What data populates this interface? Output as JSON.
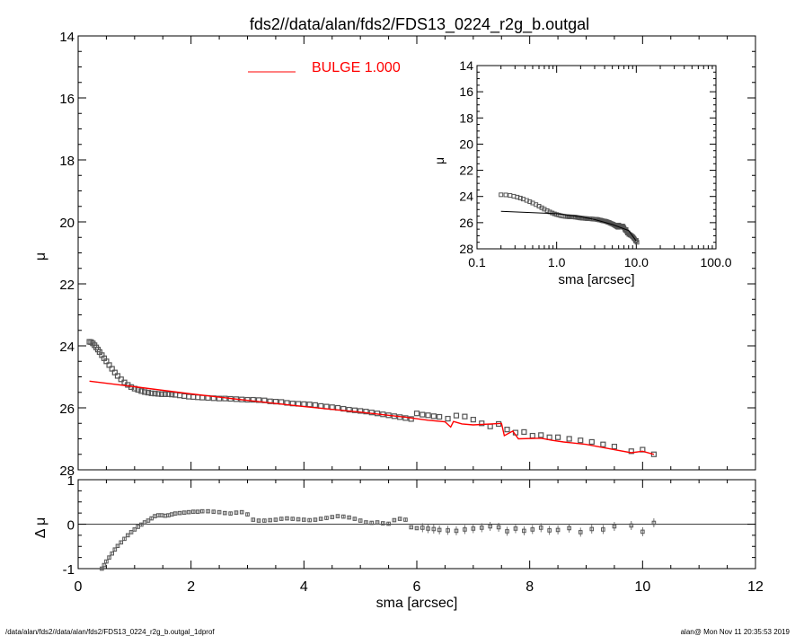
{
  "footer": {
    "left": "/data/alan/fds2//data/alan/fds2/FDS13_0224_r2g_b.outgal_1dprof",
    "right": "alan@  Mon Nov 11 20:35:53 2019"
  },
  "colors": {
    "model": "#ff0000",
    "points": "#555555",
    "axes": "#000000"
  },
  "chart_data": [
    {
      "id": "main",
      "type": "scatter",
      "title": "fds2//data/alan/fds2/FDS13_0224_r2g_b.outgal",
      "xlabel": "",
      "ylabel": "μ",
      "xlim": [
        0,
        12
      ],
      "ylim": [
        28,
        14
      ],
      "yticks": [
        "14",
        "16",
        "18",
        "20",
        "22",
        "24",
        "26",
        "28"
      ],
      "legend": {
        "label": "BULGE  1.000",
        "placement": "top-center",
        "color": "#ff0000"
      },
      "series": [
        {
          "kind": "points",
          "x": [
            0.2,
            0.23,
            0.26,
            0.29,
            0.32,
            0.35,
            0.38,
            0.42,
            0.46,
            0.5,
            0.55,
            0.6,
            0.65,
            0.7,
            0.76,
            0.82,
            0.88,
            0.94,
            1.0,
            1.06,
            1.12,
            1.18,
            1.24,
            1.3,
            1.36,
            1.42,
            1.48,
            1.54,
            1.6,
            1.66,
            1.72,
            1.8,
            1.88,
            1.96,
            2.04,
            2.12,
            2.2,
            2.3,
            2.4,
            2.5,
            2.6,
            2.7,
            2.8,
            2.9,
            3.0,
            3.1,
            3.2,
            3.3,
            3.4,
            3.5,
            3.6,
            3.7,
            3.8,
            3.9,
            4.0,
            4.1,
            4.2,
            4.3,
            4.4,
            4.5,
            4.6,
            4.7,
            4.8,
            4.9,
            5.0,
            5.1,
            5.2,
            5.3,
            5.4,
            5.5,
            5.6,
            5.7,
            5.8,
            5.9,
            6.0,
            6.1,
            6.2,
            6.3,
            6.4,
            6.55,
            6.7,
            6.85,
            7.0,
            7.15,
            7.3,
            7.45,
            7.6,
            7.75,
            7.9,
            8.05,
            8.2,
            8.35,
            8.5,
            8.7,
            8.9,
            9.1,
            9.3,
            9.5,
            9.8,
            10.0,
            10.2
          ],
          "y": [
            23.87,
            23.88,
            23.92,
            23.98,
            24.05,
            24.12,
            24.2,
            24.3,
            24.4,
            24.5,
            24.62,
            24.74,
            24.86,
            24.97,
            25.08,
            25.18,
            25.26,
            25.33,
            25.38,
            25.42,
            25.46,
            25.49,
            25.51,
            25.53,
            25.54,
            25.55,
            25.56,
            25.56,
            25.56,
            25.57,
            25.58,
            25.6,
            25.62,
            25.64,
            25.65,
            25.66,
            25.67,
            25.68,
            25.69,
            25.7,
            25.7,
            25.71,
            25.72,
            25.73,
            25.74,
            25.74,
            25.75,
            25.76,
            25.79,
            25.8,
            25.81,
            25.84,
            25.86,
            25.87,
            25.88,
            25.89,
            25.91,
            25.94,
            25.96,
            25.98,
            26.0,
            26.03,
            26.06,
            26.08,
            26.1,
            26.12,
            26.15,
            26.18,
            26.21,
            26.24,
            26.27,
            26.3,
            26.33,
            26.36,
            26.18,
            26.22,
            26.24,
            26.27,
            26.29,
            26.35,
            26.25,
            26.28,
            26.38,
            26.5,
            26.6,
            26.52,
            26.7,
            26.8,
            26.78,
            26.9,
            26.88,
            26.95,
            26.95,
            27.0,
            27.05,
            27.1,
            27.18,
            27.25,
            27.4,
            27.35,
            27.5
          ]
        },
        {
          "kind": "model-line",
          "color": "#ff0000",
          "x": [
            0.2,
            1.0,
            2.0,
            3.0,
            4.0,
            5.0,
            5.8,
            6.2,
            6.5,
            6.6,
            6.65,
            6.8,
            7.0,
            7.5,
            7.55,
            7.7,
            7.8,
            8.2,
            8.4,
            8.6,
            9.0,
            9.5,
            9.8,
            10.0,
            10.2
          ],
          "y": [
            25.14,
            25.32,
            25.55,
            25.76,
            25.96,
            26.14,
            26.3,
            26.4,
            26.45,
            26.62,
            26.44,
            26.52,
            26.55,
            26.5,
            26.9,
            26.75,
            27.0,
            26.98,
            27.05,
            27.1,
            27.18,
            27.35,
            27.45,
            27.4,
            27.5
          ]
        }
      ]
    },
    {
      "id": "inset",
      "type": "scatter",
      "title": "",
      "xlabel": "sma [arcsec]",
      "ylabel": "μ",
      "xscale": "log",
      "xlim": [
        0.1,
        100
      ],
      "ylim": [
        28,
        14
      ],
      "xticks": [
        "0.1",
        "1.0",
        "10.0",
        "100.0"
      ],
      "yticks": [
        "14",
        "16",
        "18",
        "20",
        "22",
        "24",
        "26",
        "28"
      ],
      "series": [
        {
          "kind": "points",
          "ref": "main.points"
        },
        {
          "kind": "model-line",
          "color": "#000000",
          "x": [
            0.2,
            1.0,
            2.0,
            3.0,
            5.0,
            8.0,
            10.0
          ],
          "y": [
            25.14,
            25.32,
            25.55,
            25.76,
            26.14,
            26.6,
            27.4
          ]
        }
      ]
    },
    {
      "id": "residual",
      "type": "scatter",
      "title": "",
      "xlabel": "sma [arcsec]",
      "ylabel": "Δ μ",
      "xlim": [
        0,
        12
      ],
      "ylim": [
        -1,
        1
      ],
      "xticks": [
        "0",
        "2",
        "4",
        "6",
        "8",
        "10",
        "12"
      ],
      "yticks": [
        "1",
        "0",
        "-1"
      ],
      "series": [
        {
          "kind": "points",
          "x": [
            0.42,
            0.46,
            0.5,
            0.55,
            0.6,
            0.65,
            0.7,
            0.76,
            0.82,
            0.88,
            0.94,
            1.0,
            1.06,
            1.12,
            1.18,
            1.24,
            1.3,
            1.36,
            1.42,
            1.48,
            1.54,
            1.6,
            1.66,
            1.72,
            1.8,
            1.88,
            1.96,
            2.04,
            2.12,
            2.2,
            2.3,
            2.4,
            2.5,
            2.6,
            2.7,
            2.8,
            2.9,
            3.0,
            3.1,
            3.2,
            3.3,
            3.4,
            3.5,
            3.6,
            3.7,
            3.8,
            3.9,
            4.0,
            4.1,
            4.2,
            4.3,
            4.4,
            4.5,
            4.6,
            4.7,
            4.8,
            4.9,
            5.0,
            5.1,
            5.2,
            5.3,
            5.4,
            5.5,
            5.6,
            5.7,
            5.8,
            5.9,
            6.0,
            6.1,
            6.2,
            6.3,
            6.4,
            6.55,
            6.7,
            6.85,
            7.0,
            7.15,
            7.3,
            7.45,
            7.6,
            7.75,
            7.9,
            8.05,
            8.2,
            8.35,
            8.5,
            8.7,
            8.9,
            9.1,
            9.3,
            9.5,
            9.8,
            10.0,
            10.2
          ],
          "y": [
            -1.0,
            -0.92,
            -0.84,
            -0.75,
            -0.66,
            -0.57,
            -0.49,
            -0.41,
            -0.33,
            -0.25,
            -0.18,
            -0.12,
            -0.06,
            -0.01,
            0.04,
            0.08,
            0.13,
            0.18,
            0.2,
            0.2,
            0.19,
            0.2,
            0.22,
            0.24,
            0.25,
            0.26,
            0.27,
            0.28,
            0.28,
            0.29,
            0.29,
            0.28,
            0.27,
            0.25,
            0.24,
            0.26,
            0.27,
            0.22,
            0.1,
            0.08,
            0.08,
            0.09,
            0.1,
            0.12,
            0.13,
            0.12,
            0.11,
            0.1,
            0.09,
            0.1,
            0.12,
            0.14,
            0.16,
            0.18,
            0.17,
            0.15,
            0.12,
            0.08,
            0.04,
            0.03,
            0.04,
            0.02,
            0.01,
            0.09,
            0.12,
            0.1,
            -0.07,
            -0.09,
            -0.08,
            -0.1,
            -0.11,
            -0.13,
            -0.14,
            -0.15,
            -0.12,
            -0.1,
            -0.08,
            -0.05,
            -0.07,
            -0.16,
            -0.1,
            -0.15,
            -0.12,
            -0.08,
            -0.14,
            -0.13,
            -0.09,
            -0.18,
            -0.11,
            -0.12,
            -0.05,
            -0.03,
            -0.17,
            0.03
          ]
        }
      ]
    }
  ]
}
